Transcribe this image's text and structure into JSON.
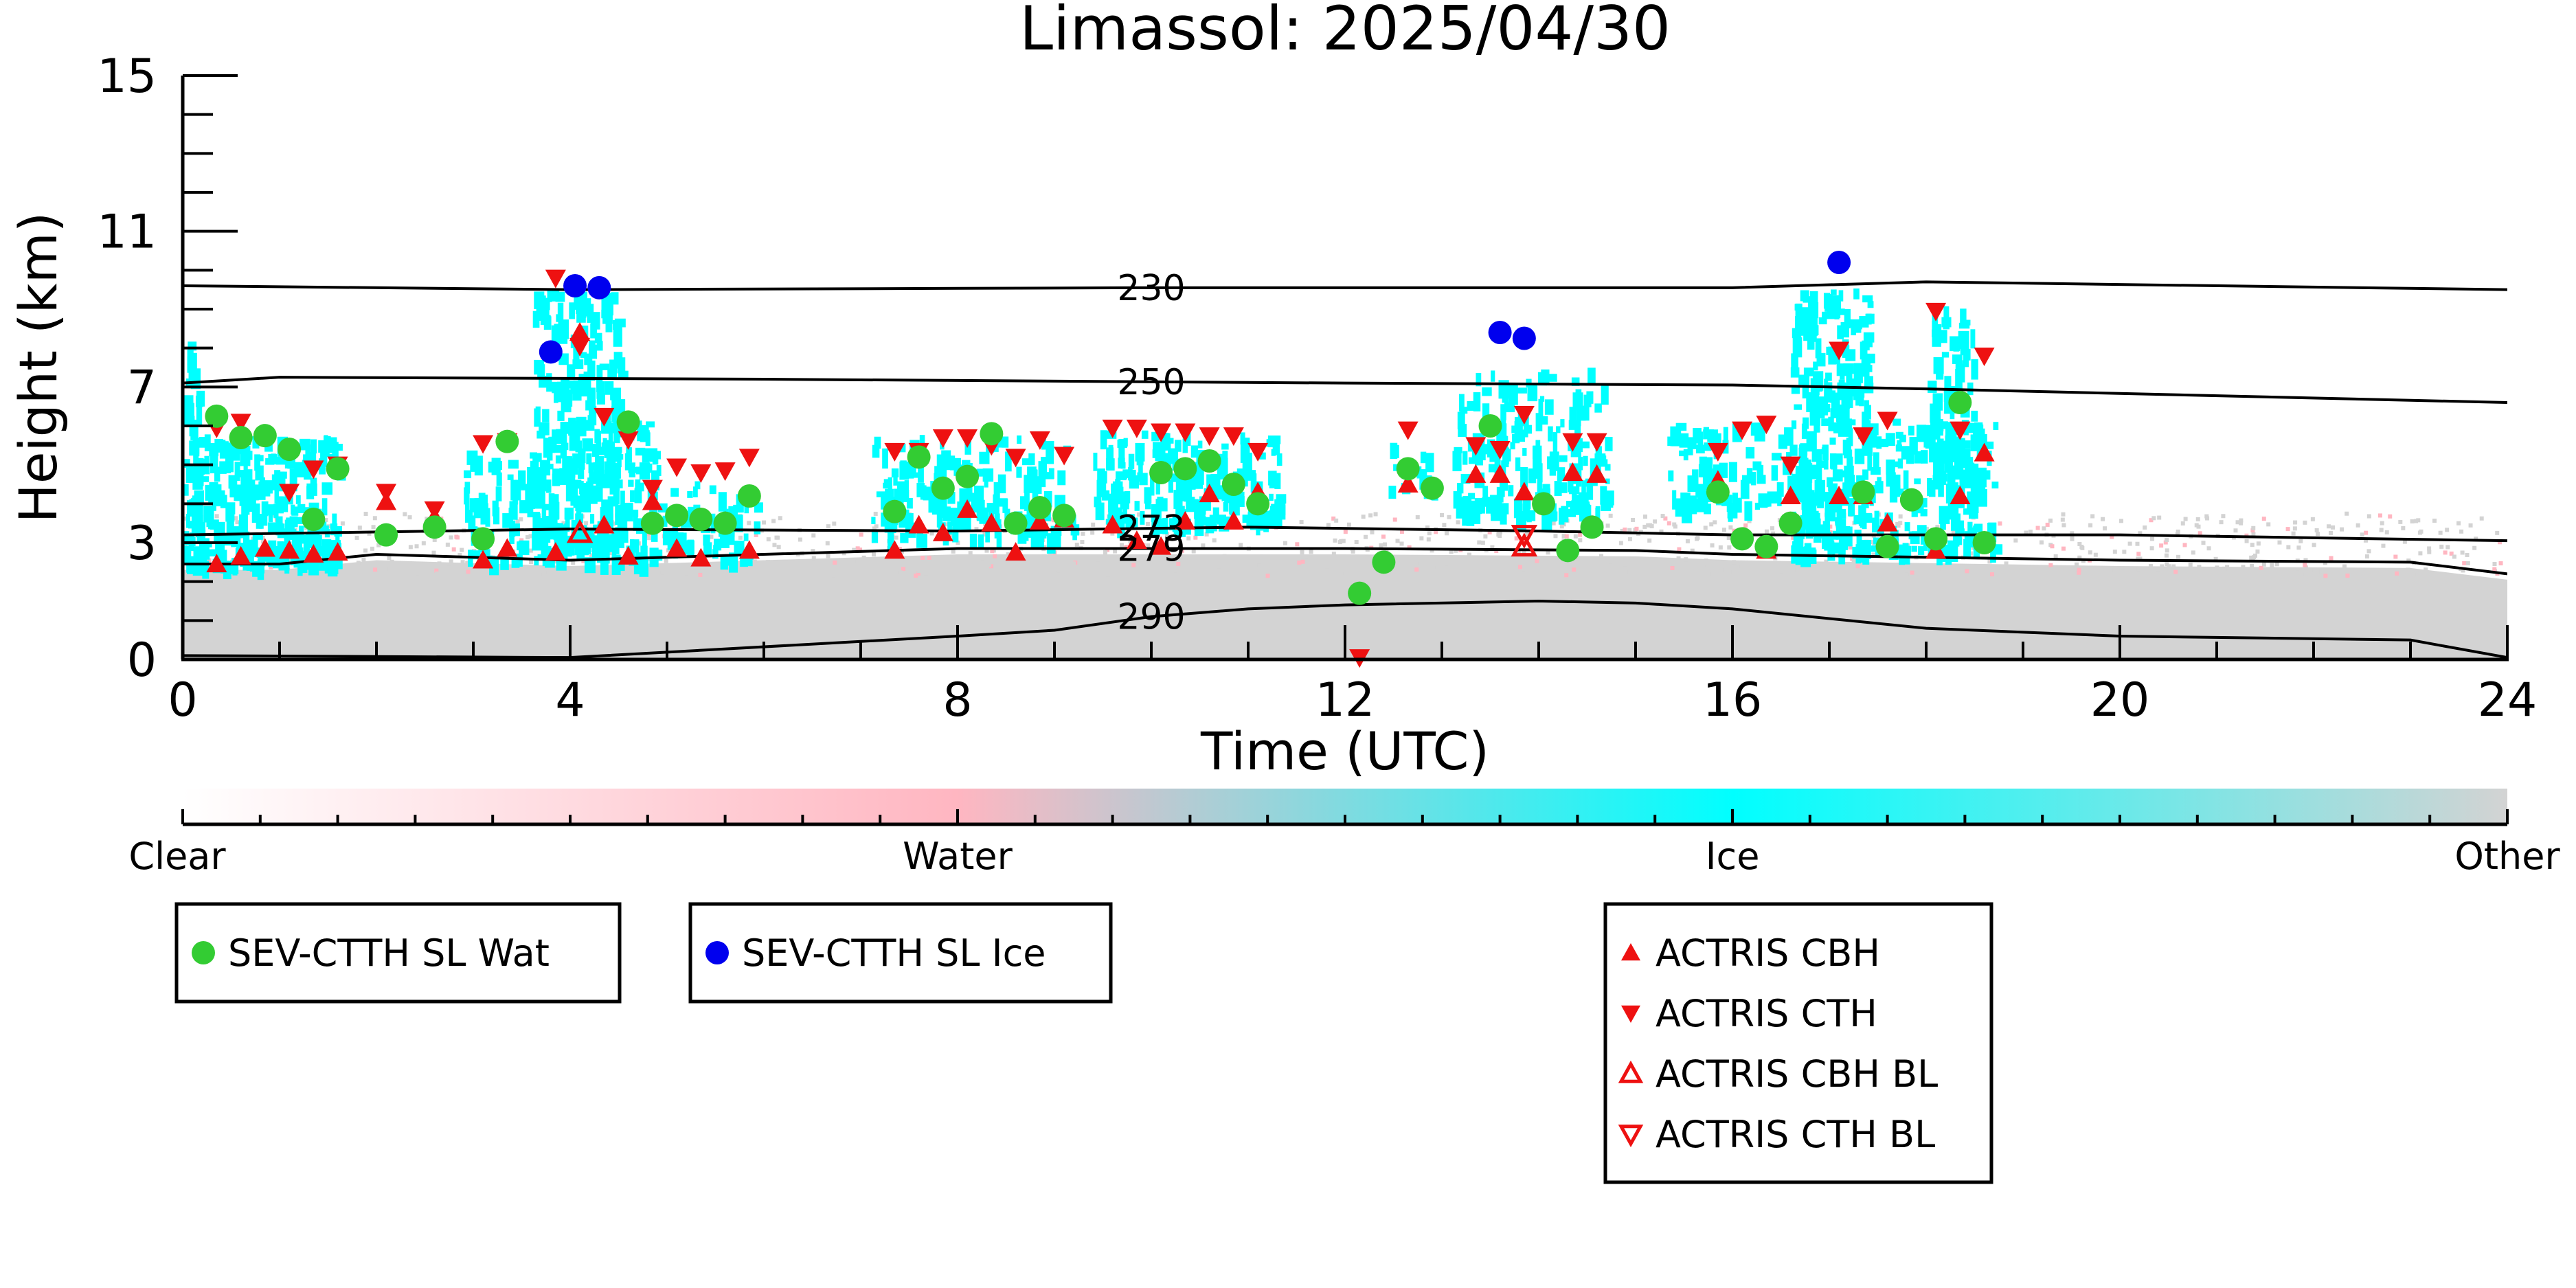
{
  "chart_data": {
    "type": "scatter",
    "title": "Limassol: 2025/04/30",
    "xlabel": "Time (UTC)",
    "ylabel": "Height (km)",
    "xlim": [
      0,
      24
    ],
    "ylim": [
      0,
      15
    ],
    "xticks": [
      "0",
      "4",
      "8",
      "12",
      "16",
      "20",
      "24"
    ],
    "yticks": [
      "0",
      "3",
      "7",
      "11",
      "15"
    ],
    "isotherms": [
      {
        "label": "230",
        "points": [
          [
            0,
            9.6
          ],
          [
            4,
            9.5
          ],
          [
            10,
            9.55
          ],
          [
            16,
            9.55
          ],
          [
            18,
            9.7
          ],
          [
            24,
            9.5
          ]
        ]
      },
      {
        "label": "250",
        "points": [
          [
            0,
            7.1
          ],
          [
            1,
            7.25
          ],
          [
            6,
            7.2
          ],
          [
            12,
            7.1
          ],
          [
            16,
            7.05
          ],
          [
            18,
            6.95
          ],
          [
            24,
            6.6
          ]
        ]
      },
      {
        "label": "273",
        "points": [
          [
            0,
            3.2
          ],
          [
            4,
            3.35
          ],
          [
            8,
            3.3
          ],
          [
            11,
            3.4
          ],
          [
            14,
            3.3
          ],
          [
            16,
            3.2
          ],
          [
            20,
            3.2
          ],
          [
            24,
            3.05
          ]
        ]
      },
      {
        "label": "279",
        "points": [
          [
            0,
            2.45
          ],
          [
            1,
            2.45
          ],
          [
            2,
            2.7
          ],
          [
            4,
            2.55
          ],
          [
            8,
            2.85
          ],
          [
            12,
            2.85
          ],
          [
            15,
            2.8
          ],
          [
            16,
            2.7
          ],
          [
            20,
            2.55
          ],
          [
            23,
            2.5
          ],
          [
            24,
            2.2
          ]
        ]
      },
      {
        "label": "290",
        "points": [
          [
            0,
            0.1
          ],
          [
            4,
            0.05
          ],
          [
            8,
            0.6
          ],
          [
            9,
            0.75
          ],
          [
            10,
            1.1
          ],
          [
            11,
            1.3
          ],
          [
            12,
            1.4
          ],
          [
            14,
            1.5
          ],
          [
            15,
            1.45
          ],
          [
            16,
            1.3
          ],
          [
            18,
            0.8
          ],
          [
            20,
            0.6
          ],
          [
            23,
            0.5
          ],
          [
            24,
            0.05
          ]
        ]
      }
    ],
    "colorbar": {
      "labels": [
        "Clear",
        "Water",
        "Ice",
        "Other"
      ],
      "colors": [
        "#ffffff",
        "#ffb6c1",
        "#00ffff",
        "#d3d3d3"
      ]
    },
    "series": [
      {
        "name": "SEV-CTTH SL Wat",
        "color": "#33cc33",
        "marker": "circle",
        "points": [
          [
            0.35,
            6.25
          ],
          [
            0.6,
            5.7
          ],
          [
            0.85,
            5.75
          ],
          [
            1.1,
            5.4
          ],
          [
            1.35,
            3.6
          ],
          [
            1.6,
            4.9
          ],
          [
            2.1,
            3.2
          ],
          [
            2.6,
            3.4
          ],
          [
            3.1,
            3.1
          ],
          [
            3.35,
            5.6
          ],
          [
            4.6,
            6.1
          ],
          [
            4.85,
            3.5
          ],
          [
            5.1,
            3.7
          ],
          [
            5.35,
            3.6
          ],
          [
            5.6,
            3.5
          ],
          [
            5.85,
            4.2
          ],
          [
            7.35,
            3.8
          ],
          [
            7.6,
            5.2
          ],
          [
            7.85,
            4.4
          ],
          [
            8.1,
            4.7
          ],
          [
            8.35,
            5.8
          ],
          [
            8.6,
            3.5
          ],
          [
            8.85,
            3.9
          ],
          [
            9.1,
            3.7
          ],
          [
            10.1,
            4.8
          ],
          [
            10.35,
            4.9
          ],
          [
            10.6,
            5.1
          ],
          [
            10.85,
            4.5
          ],
          [
            11.1,
            4.0
          ],
          [
            12.15,
            1.7
          ],
          [
            12.4,
            2.5
          ],
          [
            12.65,
            4.9
          ],
          [
            12.9,
            4.4
          ],
          [
            13.5,
            6.0
          ],
          [
            14.05,
            4.0
          ],
          [
            14.3,
            2.8
          ],
          [
            14.55,
            3.4
          ],
          [
            15.85,
            4.3
          ],
          [
            16.1,
            3.1
          ],
          [
            16.35,
            2.9
          ],
          [
            16.6,
            3.5
          ],
          [
            17.35,
            4.3
          ],
          [
            17.6,
            2.9
          ],
          [
            17.85,
            4.1
          ],
          [
            18.1,
            3.1
          ],
          [
            18.35,
            6.6
          ],
          [
            18.6,
            3.0
          ]
        ]
      },
      {
        "name": "SEV-CTTH SL Ice",
        "color": "#0000ee",
        "marker": "circle",
        "points": [
          [
            3.8,
            7.9
          ],
          [
            4.05,
            9.6
          ],
          [
            4.3,
            9.55
          ],
          [
            13.6,
            8.4
          ],
          [
            13.85,
            8.25
          ],
          [
            17.1,
            10.2
          ]
        ]
      },
      {
        "name": "ACTRIS CBH",
        "color": "#ee1111",
        "marker": "triangle-up",
        "points": [
          [
            0.35,
            2.45
          ],
          [
            0.6,
            2.65
          ],
          [
            0.85,
            2.85
          ],
          [
            1.1,
            2.8
          ],
          [
            1.35,
            2.7
          ],
          [
            1.6,
            2.75
          ],
          [
            2.1,
            4.05
          ],
          [
            2.6,
            3.65
          ],
          [
            3.1,
            2.55
          ],
          [
            3.35,
            2.85
          ],
          [
            3.85,
            2.75
          ],
          [
            4.1,
            8.4
          ],
          [
            4.35,
            3.45
          ],
          [
            4.6,
            2.65
          ],
          [
            4.85,
            4.05
          ],
          [
            5.1,
            2.85
          ],
          [
            5.35,
            2.6
          ],
          [
            5.6,
            3.55
          ],
          [
            5.85,
            2.8
          ],
          [
            7.35,
            2.8
          ],
          [
            7.6,
            3.45
          ],
          [
            7.85,
            3.25
          ],
          [
            8.1,
            3.85
          ],
          [
            8.35,
            3.5
          ],
          [
            8.6,
            2.75
          ],
          [
            8.85,
            3.55
          ],
          [
            9.1,
            3.6
          ],
          [
            9.6,
            3.45
          ],
          [
            9.85,
            3.05
          ],
          [
            10.1,
            2.9
          ],
          [
            10.35,
            3.55
          ],
          [
            10.6,
            4.25
          ],
          [
            10.85,
            3.55
          ],
          [
            11.1,
            4.3
          ],
          [
            12.65,
            4.5
          ],
          [
            13.35,
            4.75
          ],
          [
            13.6,
            4.75
          ],
          [
            13.85,
            4.3
          ],
          [
            14.35,
            4.8
          ],
          [
            14.6,
            4.75
          ],
          [
            15.85,
            4.6
          ],
          [
            16.35,
            2.8
          ],
          [
            16.6,
            4.2
          ],
          [
            17.1,
            4.2
          ],
          [
            17.35,
            4.2
          ],
          [
            17.6,
            3.5
          ],
          [
            18.1,
            2.8
          ],
          [
            18.35,
            4.2
          ],
          [
            18.6,
            5.3
          ]
        ]
      },
      {
        "name": "ACTRIS CTH",
        "color": "#ee1111",
        "marker": "triangle-down",
        "points": [
          [
            0.35,
            5.95
          ],
          [
            0.6,
            6.1
          ],
          [
            1.1,
            4.3
          ],
          [
            1.35,
            4.9
          ],
          [
            1.6,
            5.0
          ],
          [
            2.1,
            4.3
          ],
          [
            2.6,
            3.85
          ],
          [
            3.1,
            5.55
          ],
          [
            3.35,
            5.6
          ],
          [
            3.85,
            9.8
          ],
          [
            4.1,
            8.05
          ],
          [
            4.35,
            6.25
          ],
          [
            4.6,
            5.65
          ],
          [
            4.85,
            4.4
          ],
          [
            5.1,
            4.95
          ],
          [
            5.35,
            4.8
          ],
          [
            5.6,
            4.85
          ],
          [
            5.85,
            5.2
          ],
          [
            7.35,
            5.35
          ],
          [
            7.6,
            5.35
          ],
          [
            7.85,
            5.7
          ],
          [
            8.1,
            5.7
          ],
          [
            8.35,
            5.5
          ],
          [
            8.6,
            5.2
          ],
          [
            8.85,
            5.65
          ],
          [
            9.1,
            5.25
          ],
          [
            9.6,
            5.95
          ],
          [
            9.85,
            5.95
          ],
          [
            10.1,
            5.85
          ],
          [
            10.35,
            5.85
          ],
          [
            10.6,
            5.75
          ],
          [
            10.85,
            5.75
          ],
          [
            11.1,
            5.35
          ],
          [
            12.15,
            0.05
          ],
          [
            12.65,
            5.9
          ],
          [
            13.35,
            5.5
          ],
          [
            13.6,
            5.4
          ],
          [
            13.85,
            6.3
          ],
          [
            14.35,
            5.6
          ],
          [
            14.6,
            5.6
          ],
          [
            15.85,
            5.35
          ],
          [
            16.1,
            5.9
          ],
          [
            16.35,
            6.05
          ],
          [
            16.6,
            5.0
          ],
          [
            17.1,
            7.95
          ],
          [
            17.35,
            5.75
          ],
          [
            17.6,
            6.15
          ],
          [
            18.1,
            8.95
          ],
          [
            18.35,
            5.9
          ],
          [
            18.6,
            7.8
          ]
        ]
      },
      {
        "name": "ACTRIS CBH BL",
        "color": "#ee1111",
        "marker": "triangle-up-open",
        "points": [
          [
            4.1,
            3.25
          ],
          [
            13.85,
            2.9
          ]
        ]
      },
      {
        "name": "ACTRIS CTH BL",
        "color": "#ee1111",
        "marker": "triangle-down-open",
        "points": [
          [
            13.85,
            3.2
          ]
        ]
      }
    ]
  }
}
